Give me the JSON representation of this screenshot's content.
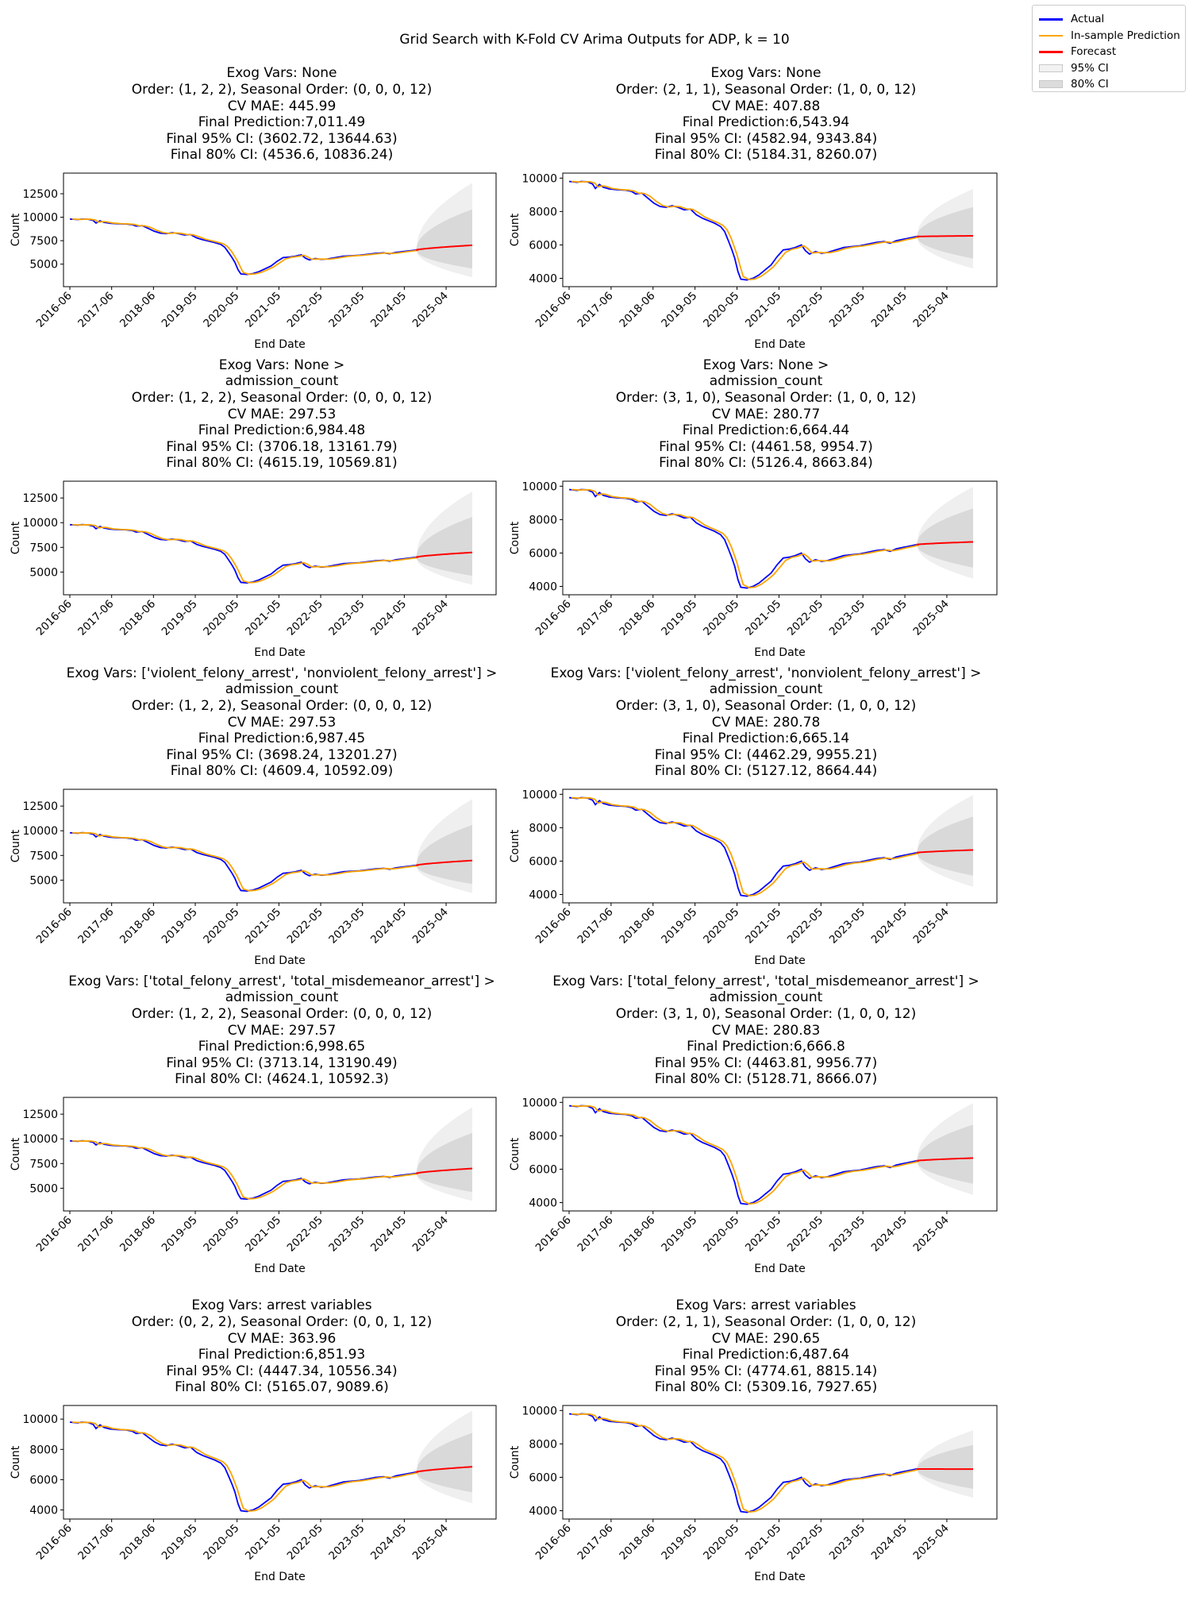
{
  "figure": {
    "suptitle": "Grid Search with K-Fold CV Arima Outputs for ADP, k = 10"
  },
  "legend": {
    "items": [
      {
        "label": "Actual",
        "kind": "line",
        "color": "#0000ff"
      },
      {
        "label": "In-sample Prediction",
        "kind": "line",
        "color": "#ffa500"
      },
      {
        "label": "Forecast",
        "kind": "line",
        "color": "#ff0000"
      },
      {
        "label": "95% CI",
        "kind": "band",
        "color": "#f2f2f2"
      },
      {
        "label": "80% CI",
        "kind": "band",
        "color": "#dcdcdc"
      }
    ]
  },
  "chart_data": [
    {
      "type": "line",
      "title_lines": [
        "Exog Vars: None",
        "Order: (1, 2, 2), Seasonal Order: (0, 0, 0, 12)",
        "CV MAE: 445.99",
        "Final Prediction:7,011.49",
        "Final 95% CI: (3602.72, 13644.63)",
        "Final 80% CI: (4536.6, 10836.24)"
      ],
      "xlabel": "End Date",
      "ylabel": "Count",
      "yticks": [
        5000,
        7500,
        10000,
        12500
      ],
      "ylim": [
        2600,
        14700
      ],
      "xticks": [
        "2016-06",
        "2017-06",
        "2018-06",
        "2019-05",
        "2020-05",
        "2021-05",
        "2022-05",
        "2023-05",
        "2024-05",
        "2025-04"
      ],
      "forecast_end": 7011.49,
      "ci95_end": [
        3602.72,
        13644.63
      ],
      "ci80_end": [
        4536.6,
        10836.24
      ]
    },
    {
      "type": "line",
      "title_lines": [
        "Exog Vars: None",
        "Order: (2, 1, 1), Seasonal Order: (1, 0, 0, 12)",
        "CV MAE: 407.88",
        "Final Prediction:6,543.94",
        "Final 95% CI: (4582.94, 9343.84)",
        "Final 80% CI: (5184.31, 8260.07)"
      ],
      "xlabel": "End Date",
      "ylabel": "Count",
      "yticks": [
        4000,
        6000,
        8000,
        10000
      ],
      "ylim": [
        3500,
        10300
      ],
      "xticks": [
        "2016-06",
        "2017-06",
        "2018-06",
        "2019-05",
        "2020-05",
        "2021-05",
        "2022-05",
        "2023-05",
        "2024-05",
        "2025-04"
      ],
      "forecast_end": 6543.94,
      "ci95_end": [
        4582.94,
        9343.84
      ],
      "ci80_end": [
        5184.31,
        8260.07
      ]
    },
    {
      "type": "line",
      "title_lines": [
        "Exog Vars: None >",
        "admission_count",
        "Order: (1, 2, 2), Seasonal Order: (0, 0, 0, 12)",
        "CV MAE: 297.53",
        "Final Prediction:6,984.48",
        "Final 95% CI: (3706.18, 13161.79)",
        "Final 80% CI: (4615.19, 10569.81)"
      ],
      "xlabel": "End Date",
      "ylabel": "Count",
      "yticks": [
        5000,
        7500,
        10000,
        12500
      ],
      "ylim": [
        2700,
        14200
      ],
      "xticks": [
        "2016-06",
        "2017-06",
        "2018-06",
        "2019-05",
        "2020-05",
        "2021-05",
        "2022-05",
        "2023-05",
        "2024-05",
        "2025-04"
      ],
      "forecast_end": 6984.48,
      "ci95_end": [
        3706.18,
        13161.79
      ],
      "ci80_end": [
        4615.19,
        10569.81
      ]
    },
    {
      "type": "line",
      "title_lines": [
        "Exog Vars: None >",
        "admission_count",
        "Order: (3, 1, 0), Seasonal Order: (1, 0, 0, 12)",
        "CV MAE: 280.77",
        "Final Prediction:6,664.44",
        "Final 95% CI: (4461.58, 9954.7)",
        "Final 80% CI: (5126.4, 8663.84)"
      ],
      "xlabel": "End Date",
      "ylabel": "Count",
      "yticks": [
        4000,
        6000,
        8000,
        10000
      ],
      "ylim": [
        3500,
        10300
      ],
      "xticks": [
        "2016-06",
        "2017-06",
        "2018-06",
        "2019-05",
        "2020-05",
        "2021-05",
        "2022-05",
        "2023-05",
        "2024-05",
        "2025-04"
      ],
      "forecast_end": 6664.44,
      "ci95_end": [
        4461.58,
        9954.7
      ],
      "ci80_end": [
        5126.4,
        8663.84
      ]
    },
    {
      "type": "line",
      "title_lines": [
        "Exog Vars: ['violent_felony_arrest', 'nonviolent_felony_arrest'] >",
        "admission_count",
        "Order: (1, 2, 2), Seasonal Order: (0, 0, 0, 12)",
        "CV MAE: 297.53",
        "Final Prediction:6,987.45",
        "Final 95% CI: (3698.24, 13201.27)",
        "Final 80% CI: (4609.4, 10592.09)"
      ],
      "xlabel": "End Date",
      "ylabel": "Count",
      "yticks": [
        5000,
        7500,
        10000,
        12500
      ],
      "ylim": [
        2700,
        14200
      ],
      "xticks": [
        "2016-06",
        "2017-06",
        "2018-06",
        "2019-05",
        "2020-05",
        "2021-05",
        "2022-05",
        "2023-05",
        "2024-05",
        "2025-04"
      ],
      "forecast_end": 6987.45,
      "ci95_end": [
        3698.24,
        13201.27
      ],
      "ci80_end": [
        4609.4,
        10592.09
      ]
    },
    {
      "type": "line",
      "title_lines": [
        "Exog Vars: ['violent_felony_arrest', 'nonviolent_felony_arrest'] >",
        "admission_count",
        "Order: (3, 1, 0), Seasonal Order: (1, 0, 0, 12)",
        "CV MAE: 280.78",
        "Final Prediction:6,665.14",
        "Final 95% CI: (4462.29, 9955.21)",
        "Final 80% CI: (5127.12, 8664.44)"
      ],
      "xlabel": "End Date",
      "ylabel": "Count",
      "yticks": [
        4000,
        6000,
        8000,
        10000
      ],
      "ylim": [
        3500,
        10300
      ],
      "xticks": [
        "2016-06",
        "2017-06",
        "2018-06",
        "2019-05",
        "2020-05",
        "2021-05",
        "2022-05",
        "2023-05",
        "2024-05",
        "2025-04"
      ],
      "forecast_end": 6665.14,
      "ci95_end": [
        4462.29,
        9955.21
      ],
      "ci80_end": [
        5127.12,
        8664.44
      ]
    },
    {
      "type": "line",
      "title_lines": [
        "Exog Vars: ['total_felony_arrest', 'total_misdemeanor_arrest'] >",
        "admission_count",
        "Order: (1, 2, 2), Seasonal Order: (0, 0, 0, 12)",
        "CV MAE: 297.57",
        "Final Prediction:6,998.65",
        "Final 95% CI: (3713.14, 13190.49)",
        "Final 80% CI: (4624.1, 10592.3)"
      ],
      "xlabel": "End Date",
      "ylabel": "Count",
      "yticks": [
        5000,
        7500,
        10000,
        12500
      ],
      "ylim": [
        2700,
        14200
      ],
      "xticks": [
        "2016-06",
        "2017-06",
        "2018-06",
        "2019-05",
        "2020-05",
        "2021-05",
        "2022-05",
        "2023-05",
        "2024-05",
        "2025-04"
      ],
      "forecast_end": 6998.65,
      "ci95_end": [
        3713.14,
        13190.49
      ],
      "ci80_end": [
        4624.1,
        10592.3
      ]
    },
    {
      "type": "line",
      "title_lines": [
        "Exog Vars: ['total_felony_arrest', 'total_misdemeanor_arrest'] >",
        "admission_count",
        "Order: (3, 1, 0), Seasonal Order: (1, 0, 0, 12)",
        "CV MAE: 280.83",
        "Final Prediction:6,666.8",
        "Final 95% CI: (4463.81, 9956.77)",
        "Final 80% CI: (5128.71, 8666.07)"
      ],
      "xlabel": "End Date",
      "ylabel": "Count",
      "yticks": [
        4000,
        6000,
        8000,
        10000
      ],
      "ylim": [
        3500,
        10300
      ],
      "xticks": [
        "2016-06",
        "2017-06",
        "2018-06",
        "2019-05",
        "2020-05",
        "2021-05",
        "2022-05",
        "2023-05",
        "2024-05",
        "2025-04"
      ],
      "forecast_end": 6666.8,
      "ci95_end": [
        4463.81,
        9956.77
      ],
      "ci80_end": [
        5128.71,
        8666.07
      ]
    },
    {
      "type": "line",
      "title_lines": [
        "Exog Vars: arrest variables",
        "Order: (0, 2, 2), Seasonal Order: (0, 0, 1, 12)",
        "CV MAE: 363.96",
        "Final Prediction:6,851.93",
        "Final 95% CI: (4447.34, 10556.34)",
        "Final 80% CI: (5165.07, 9089.6)"
      ],
      "xlabel": "End Date",
      "ylabel": "Count",
      "yticks": [
        4000,
        6000,
        8000,
        10000
      ],
      "ylim": [
        3400,
        10900
      ],
      "xticks": [
        "2016-06",
        "2017-06",
        "2018-06",
        "2019-05",
        "2020-05",
        "2021-05",
        "2022-05",
        "2023-05",
        "2024-05",
        "2025-04"
      ],
      "forecast_end": 6851.93,
      "ci95_end": [
        4447.34,
        10556.34
      ],
      "ci80_end": [
        5165.07,
        9089.6
      ]
    },
    {
      "type": "line",
      "title_lines": [
        "Exog Vars: arrest variables",
        "Order: (2, 1, 1), Seasonal Order: (1, 0, 0, 12)",
        "CV MAE: 290.65",
        "Final Prediction:6,487.64",
        "Final 95% CI: (4774.61, 8815.14)",
        "Final 80% CI: (5309.16, 7927.65)"
      ],
      "xlabel": "End Date",
      "ylabel": "Count",
      "yticks": [
        4000,
        6000,
        8000,
        10000
      ],
      "ylim": [
        3500,
        10300
      ],
      "xticks": [
        "2016-06",
        "2017-06",
        "2018-06",
        "2019-05",
        "2020-05",
        "2021-05",
        "2022-05",
        "2023-05",
        "2024-05",
        "2025-04"
      ],
      "forecast_end": 6487.64,
      "ci95_end": [
        4774.61,
        8815.14
      ],
      "ci80_end": [
        5309.16,
        7927.65
      ]
    }
  ]
}
